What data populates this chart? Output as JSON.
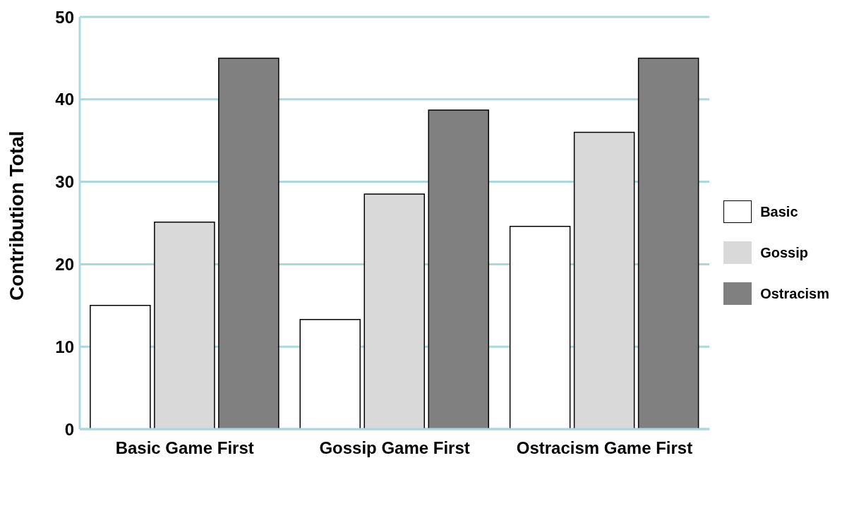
{
  "chart_data": {
    "type": "bar",
    "ylabel": "Contribution Total",
    "categories": [
      "Basic Game First",
      "Gossip Game First",
      "Ostracism Game First"
    ],
    "series": [
      {
        "name": "Basic",
        "color": "#ffffff",
        "values": [
          15,
          13.3,
          24.6
        ]
      },
      {
        "name": "Gossip",
        "color": "#d9d9d9",
        "values": [
          25.1,
          28.5,
          36
        ]
      },
      {
        "name": "Ostracism",
        "color": "#808080",
        "values": [
          45,
          38.7,
          45
        ]
      }
    ],
    "ylim": [
      0,
      50
    ],
    "yticks": [
      0,
      10,
      20,
      30,
      40,
      50
    ],
    "grid": "y",
    "legend": "right"
  }
}
